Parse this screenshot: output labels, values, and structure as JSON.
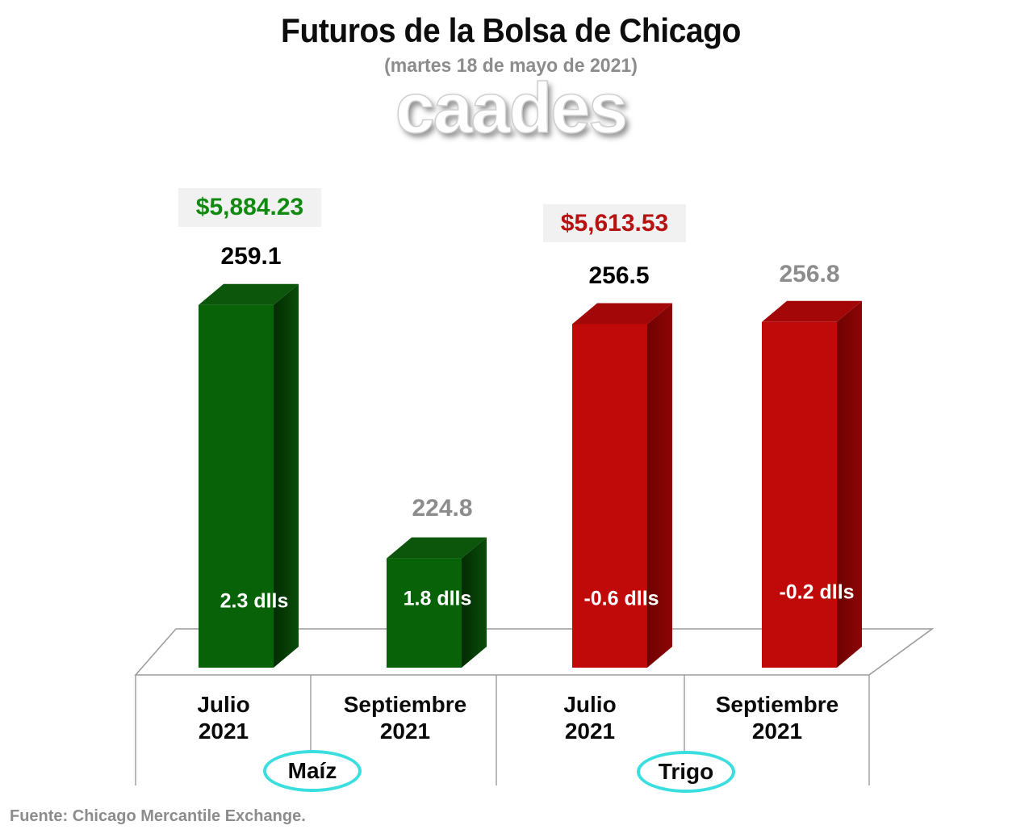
{
  "header": {
    "title": "Futuros de la Bolsa de Chicago",
    "subtitle": "(martes 18 de mayo de 2021)",
    "logo_text": "caades"
  },
  "footer": {
    "source": "Fuente: Chicago Mercantile Exchange."
  },
  "colors": {
    "maiz_front": "#086308",
    "maiz_top": "#0b560b",
    "maiz_side_dark": "#022c02",
    "maiz_side_light": "#0a4d0a",
    "trigo_front": "#c00a0a",
    "trigo_top": "#a30707",
    "trigo_side_dark": "#6e0202",
    "trigo_side_light": "#8e0505",
    "badge_bg": "#f1f1f1",
    "badge_maiz_text": "#128a12",
    "badge_trigo_text": "#b81111",
    "gray_label": "#8c8c8c",
    "axis_line": "#9c9c9c",
    "oval_border": "#3bdede",
    "bar_change_text": "#ffffff"
  },
  "chart_data": {
    "type": "bar",
    "title": "Futuros de la Bolsa de Chicago",
    "subtitle": "(martes 18 de mayo de 2021)",
    "source": "Fuente: Chicago Mercantile Exchange.",
    "legend": "none",
    "grid": false,
    "y_axis": {
      "visible": false,
      "min": 210
    },
    "groups": [
      {
        "name": "Maíz",
        "color_key": "maiz"
      },
      {
        "name": "Trigo",
        "color_key": "trigo"
      }
    ],
    "categories": [
      {
        "line1": "Julio",
        "line2": "2021"
      },
      {
        "line1": "Septiembre",
        "line2": "2021"
      },
      {
        "line1": "Julio",
        "line2": "2021"
      },
      {
        "line1": "Septiembre",
        "line2": "2021"
      }
    ],
    "bars": [
      {
        "category": "Julio 2021",
        "group": "Maíz",
        "value": 259.1,
        "value_label_color": "black",
        "change_label": "2.3 dlls",
        "price_usd": "$5,884.23"
      },
      {
        "category": "Septiembre 2021",
        "group": "Maíz",
        "value": 224.8,
        "value_label_color": "gray",
        "change_label": "1.8 dlls"
      },
      {
        "category": "Julio 2021",
        "group": "Trigo",
        "value": 256.5,
        "value_label_color": "black",
        "change_label": "-0.6 dlls",
        "price_usd": "$5,613.53"
      },
      {
        "category": "Septiembre 2021",
        "group": "Trigo",
        "value": 256.8,
        "value_label_color": "gray",
        "change_label": "-0.2 dlls"
      }
    ]
  }
}
